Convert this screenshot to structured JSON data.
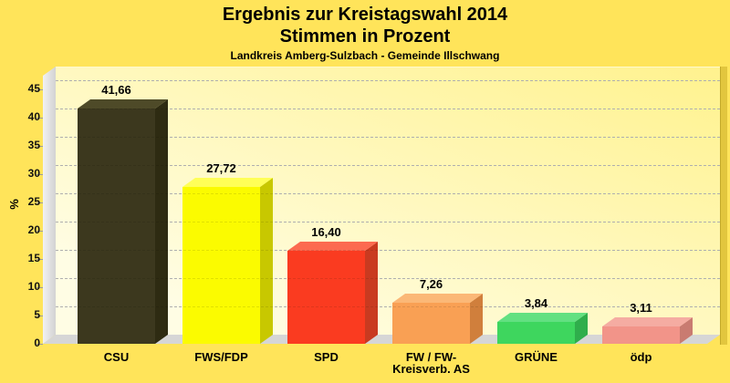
{
  "header": {
    "title_line1": "Ergebnis zur Kreistagswahl 2014",
    "title_line2": "Stimmen in Prozent",
    "subtitle": "Landkreis Amberg-Sulzbach - Gemeinde Illschwang"
  },
  "chart_data": {
    "type": "bar",
    "title": "Ergebnis zur Kreistagswahl 2014",
    "subtitle": "Stimmen in Prozent",
    "note": "Landkreis Amberg-Sulzbach - Gemeinde Illschwang",
    "xlabel": "",
    "ylabel": "%",
    "ylim": [
      0,
      45
    ],
    "yticks": [
      0,
      5,
      10,
      15,
      20,
      25,
      30,
      35,
      40,
      45
    ],
    "grid": "horizontal-dashed",
    "legend": "none",
    "style": "3d-bars",
    "categories": [
      "CSU",
      "FWS/FDP",
      "SPD",
      "FW / FW-Kreisverb. AS",
      "GRÜNE",
      "ödp"
    ],
    "category_label_lines": [
      [
        "CSU"
      ],
      [
        "FWS/FDP"
      ],
      [
        "SPD"
      ],
      [
        "FW / FW-",
        "Kreisverb. AS"
      ],
      [
        "GRÜNE"
      ],
      [
        "ödp"
      ]
    ],
    "values": [
      41.66,
      27.72,
      16.4,
      7.26,
      3.84,
      3.11
    ],
    "value_labels": [
      "41,66",
      "27,72",
      "16,40",
      "7,26",
      "3,84",
      "3,11"
    ],
    "bars": [
      {
        "party": "CSU",
        "slug": "csu",
        "front": "#3C381E",
        "top": "#4E4A28",
        "side": "#2E2B12"
      },
      {
        "party": "FWS/FDP",
        "slug": "fws-fdp",
        "front": "#FBFB00",
        "top": "#FFFF58",
        "side": "#C8C800"
      },
      {
        "party": "SPD",
        "slug": "spd",
        "front": "#FA3B20",
        "top": "#FC6A50",
        "side": "#C93A20"
      },
      {
        "party": "FW / FW-Kreisverb. AS",
        "slug": "fw-kreisverb-as",
        "front": "#F9A054",
        "top": "#FBB877",
        "side": "#D07F3C"
      },
      {
        "party": "GRÜNE",
        "slug": "gruene",
        "front": "#3ED65E",
        "top": "#62E081",
        "side": "#2FAE4C"
      },
      {
        "party": "ödp",
        "slug": "oedp",
        "front": "#F29489",
        "top": "#F5ACA2",
        "side": "#C97B71"
      }
    ]
  },
  "colors": {
    "page_background": "#FFE45A",
    "plot_wall_light": "#FFFDE4",
    "plot_wall_dark": "#FFF28E",
    "left_wall_gray_light": "#F2F2F2",
    "left_wall_gray_dark": "#D2D2D2",
    "floor_gray": "#D6D6D6",
    "grid_line": "#C3C3C3",
    "right_border_band": "#E2C63E",
    "right_border_edge": "#C4AA2A",
    "text": "#000000"
  }
}
